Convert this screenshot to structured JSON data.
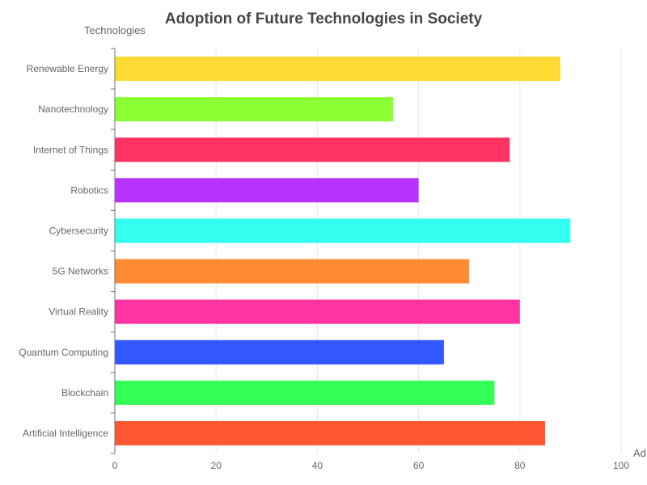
{
  "chart_data": {
    "type": "bar",
    "orientation": "horizontal",
    "title": "Adoption of Future Technologies in Society",
    "ylabel": "Technologies",
    "xlabel": "Ad",
    "xlim": [
      0,
      100
    ],
    "xticks": [
      0,
      20,
      40,
      60,
      80,
      100
    ],
    "grid": true,
    "categories": [
      "Artificial Intelligence",
      "Blockchain",
      "Quantum Computing",
      "Virtual Reality",
      "5G Networks",
      "Cybersecurity",
      "Robotics",
      "Internet of Things",
      "Nanotechnology",
      "Renewable Energy"
    ],
    "values": [
      85,
      75,
      65,
      80,
      70,
      90,
      60,
      78,
      55,
      88
    ],
    "colors": [
      "#ff5733",
      "#33ff57",
      "#3357ff",
      "#ff33a1",
      "#ff8c33",
      "#33fff0",
      "#b833ff",
      "#ff3361",
      "#8cff33",
      "#ffdb33"
    ]
  }
}
